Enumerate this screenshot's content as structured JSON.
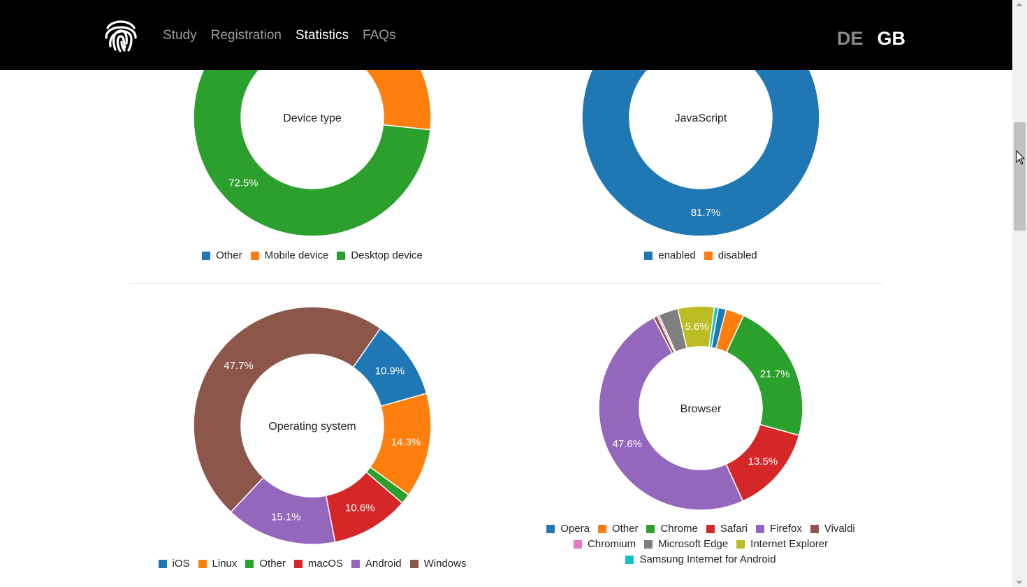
{
  "nav": {
    "items": [
      {
        "label": "Study",
        "active": false
      },
      {
        "label": "Registration",
        "active": false
      },
      {
        "label": "Statistics",
        "active": true
      },
      {
        "label": "FAQs",
        "active": false
      }
    ],
    "languages": [
      {
        "label": "DE",
        "active": false
      },
      {
        "label": "GB",
        "active": true
      }
    ]
  },
  "colors": {
    "blue": "#1f77b4",
    "orange": "#ff7f0e",
    "green": "#2ca02c",
    "red": "#d62728",
    "purple": "#9467bd",
    "brown": "#8c564b",
    "pink": "#e377c2",
    "gray": "#7f7f7f",
    "olive": "#bcbd22",
    "cyan": "#17becf"
  },
  "chart_data": [
    {
      "id": "device",
      "type": "pie",
      "title": "Device type",
      "categories": [
        "Other",
        "Mobile device",
        "Desktop device"
      ],
      "colors": [
        "#1f77b4",
        "#ff7f0e",
        "#2ca02c"
      ],
      "values": [
        0,
        27.5,
        72.5
      ],
      "labels": [
        "",
        "",
        "72.5%"
      ]
    },
    {
      "id": "javascript",
      "type": "pie",
      "title": "JavaScript",
      "categories": [
        "enabled",
        "disabled"
      ],
      "colors": [
        "#1f77b4",
        "#ff7f0e"
      ],
      "values": [
        81.7,
        18.3
      ],
      "labels": [
        "81.7%",
        ""
      ]
    },
    {
      "id": "os",
      "type": "pie",
      "title": "Operating system",
      "categories": [
        "iOS",
        "Linux",
        "Other",
        "macOS",
        "Android",
        "Windows"
      ],
      "colors": [
        "#1f77b4",
        "#ff7f0e",
        "#2ca02c",
        "#d62728",
        "#9467bd",
        "#8c564b"
      ],
      "values": [
        10.9,
        14.3,
        1.4,
        10.6,
        15.1,
        47.7
      ],
      "labels": [
        "10.9%",
        "14.3%",
        "",
        "10.6%",
        "15.1%",
        "47.7%"
      ]
    },
    {
      "id": "browser",
      "type": "pie",
      "title": "Browser",
      "categories": [
        "Opera",
        "Other",
        "Chrome",
        "Safari",
        "Firefox",
        "Vivaldi",
        "Chromium",
        "Microsoft Edge",
        "Internet Explorer",
        "Samsung Internet for Android"
      ],
      "colors": [
        "#1f77b4",
        "#ff7f0e",
        "#2ca02c",
        "#d62728",
        "#9467bd",
        "#8c564b",
        "#e377c2",
        "#7f7f7f",
        "#bcbd22",
        "#17becf"
      ],
      "values": [
        1.2,
        2.8,
        21.7,
        13.5,
        47.6,
        0.6,
        0.3,
        3.0,
        5.6,
        0.6
      ],
      "labels": [
        "",
        "",
        "21.7%",
        "13.5%",
        "47.6%",
        "",
        "",
        "",
        "5.6%",
        ""
      ]
    }
  ]
}
